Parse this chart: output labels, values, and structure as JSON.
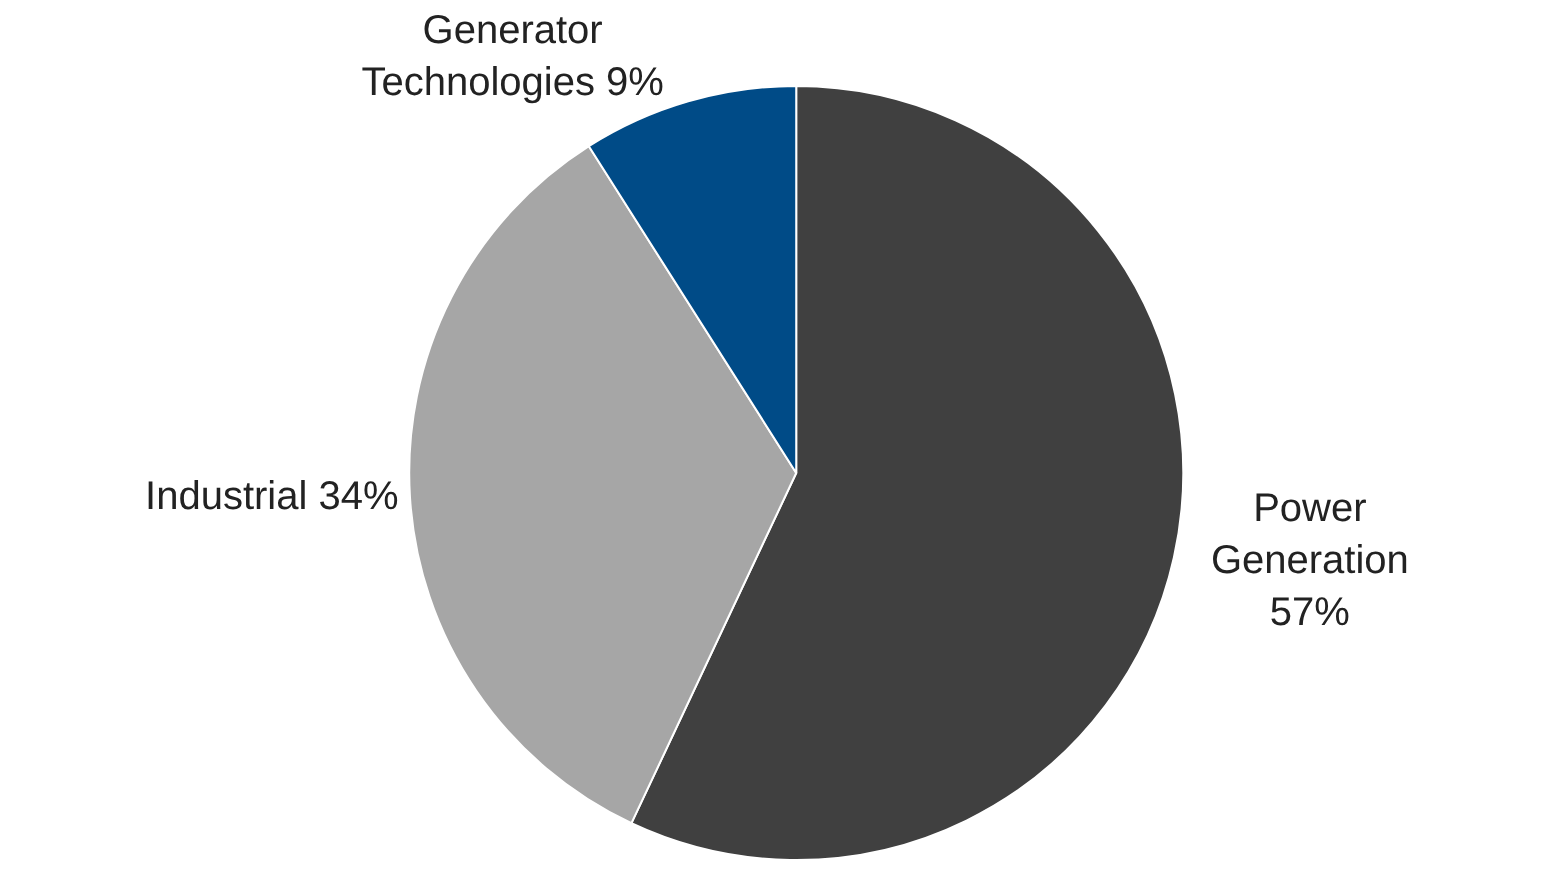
{
  "chart_data": {
    "type": "pie",
    "categories": [
      "Power Generation",
      "Industrial",
      "Generator Technologies"
    ],
    "values": [
      57,
      34,
      9
    ],
    "value_labels": [
      "57%",
      "34%",
      "9%"
    ],
    "colors": [
      "#404040",
      "#a6a6a6",
      "#004b87"
    ],
    "legend": false
  }
}
